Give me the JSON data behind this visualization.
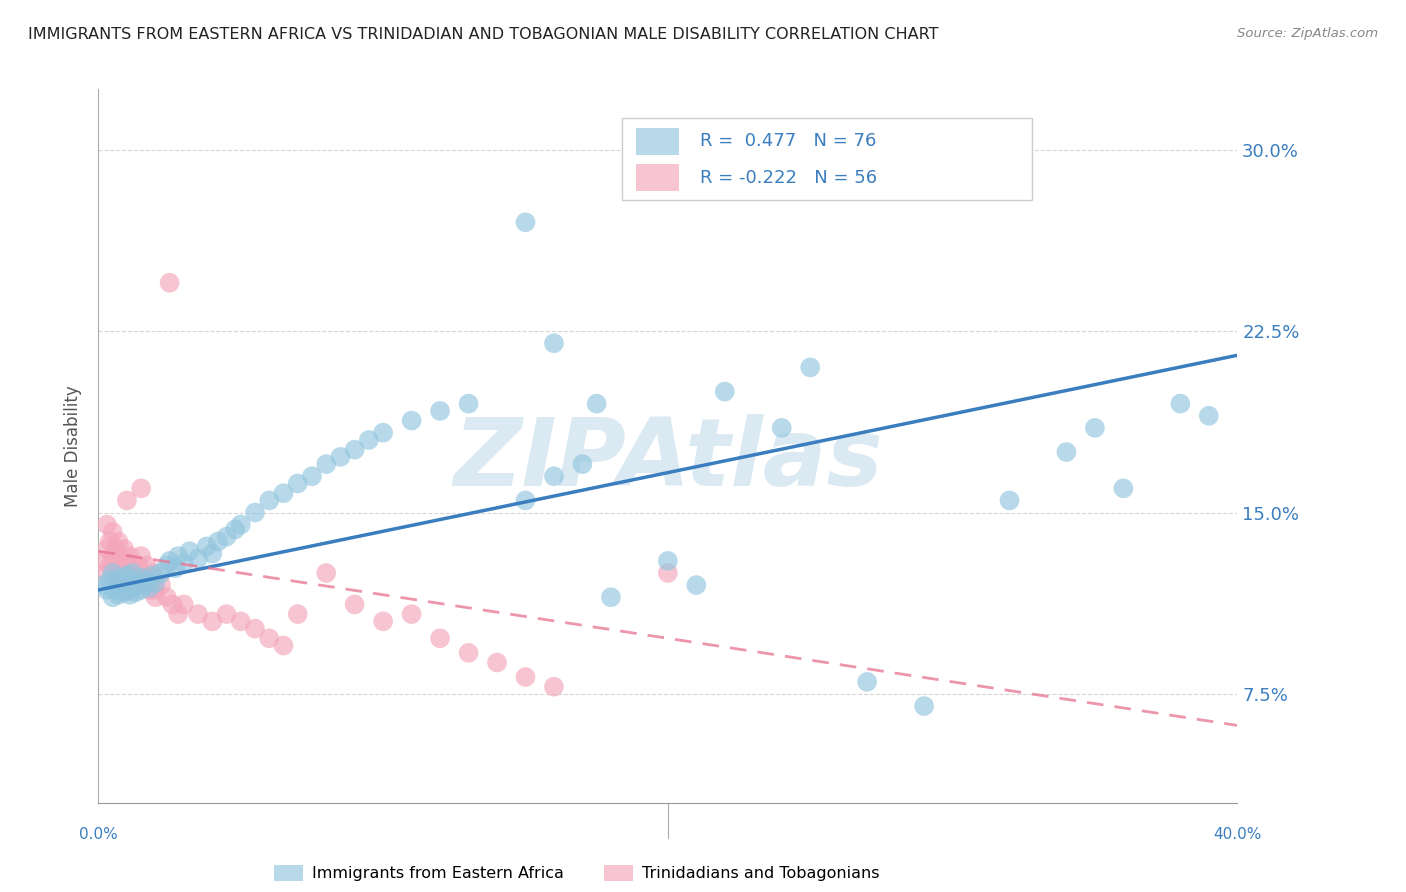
{
  "title": "IMMIGRANTS FROM EASTERN AFRICA VS TRINIDADIAN AND TOBAGONIAN MALE DISABILITY CORRELATION CHART",
  "source": "Source: ZipAtlas.com",
  "ylabel": "Male Disability",
  "yticks": [
    0.075,
    0.15,
    0.225,
    0.3
  ],
  "ytick_labels": [
    "7.5%",
    "15.0%",
    "22.5%",
    "30.0%"
  ],
  "xmin": 0.0,
  "xmax": 0.4,
  "ymin": 0.03,
  "ymax": 0.325,
  "blue_R": 0.477,
  "blue_N": 76,
  "pink_R": -0.222,
  "pink_N": 56,
  "blue_label": "Immigrants from Eastern Africa",
  "pink_label": "Trinidadians and Tobagonians",
  "blue_color": "#92c5de",
  "pink_color": "#f4a6bb",
  "blue_line_color": "#3a7ebf",
  "pink_line_color": "#e8728f",
  "legend_text_color": "#3a7ebf",
  "watermark": "ZIPAtlas",
  "watermark_color": "#b8d4e8",
  "background_color": "#ffffff",
  "grid_color": "#cccccc",
  "title_color": "#222222",
  "blue_scatter_x": [
    0.002,
    0.003,
    0.004,
    0.005,
    0.005,
    0.006,
    0.006,
    0.007,
    0.007,
    0.008,
    0.008,
    0.009,
    0.009,
    0.01,
    0.01,
    0.011,
    0.011,
    0.012,
    0.012,
    0.013,
    0.013,
    0.014,
    0.015,
    0.015,
    0.016,
    0.017,
    0.018,
    0.019,
    0.02,
    0.022,
    0.024,
    0.025,
    0.027,
    0.028,
    0.03,
    0.032,
    0.035,
    0.038,
    0.04,
    0.042,
    0.045,
    0.048,
    0.05,
    0.055,
    0.06,
    0.065,
    0.07,
    0.075,
    0.08,
    0.085,
    0.09,
    0.095,
    0.1,
    0.11,
    0.12,
    0.13,
    0.15,
    0.16,
    0.17,
    0.175,
    0.18,
    0.2,
    0.21,
    0.22,
    0.24,
    0.25,
    0.27,
    0.29,
    0.32,
    0.34,
    0.35,
    0.36,
    0.38,
    0.39,
    0.15,
    0.16
  ],
  "blue_scatter_y": [
    0.12,
    0.118,
    0.122,
    0.115,
    0.125,
    0.118,
    0.122,
    0.116,
    0.12,
    0.119,
    0.123,
    0.117,
    0.121,
    0.118,
    0.124,
    0.116,
    0.122,
    0.119,
    0.125,
    0.117,
    0.121,
    0.12,
    0.118,
    0.123,
    0.12,
    0.122,
    0.119,
    0.124,
    0.121,
    0.125,
    0.128,
    0.13,
    0.127,
    0.132,
    0.129,
    0.134,
    0.131,
    0.136,
    0.133,
    0.138,
    0.14,
    0.143,
    0.145,
    0.15,
    0.155,
    0.158,
    0.162,
    0.165,
    0.17,
    0.173,
    0.176,
    0.18,
    0.183,
    0.188,
    0.192,
    0.195,
    0.155,
    0.165,
    0.17,
    0.195,
    0.115,
    0.13,
    0.12,
    0.2,
    0.185,
    0.21,
    0.08,
    0.07,
    0.155,
    0.175,
    0.185,
    0.16,
    0.195,
    0.19,
    0.27,
    0.22
  ],
  "pink_scatter_x": [
    0.001,
    0.002,
    0.003,
    0.003,
    0.004,
    0.004,
    0.005,
    0.005,
    0.006,
    0.006,
    0.007,
    0.007,
    0.008,
    0.008,
    0.009,
    0.009,
    0.01,
    0.01,
    0.011,
    0.011,
    0.012,
    0.013,
    0.014,
    0.015,
    0.016,
    0.017,
    0.018,
    0.019,
    0.02,
    0.022,
    0.024,
    0.026,
    0.028,
    0.03,
    0.035,
    0.04,
    0.045,
    0.05,
    0.055,
    0.06,
    0.065,
    0.07,
    0.08,
    0.09,
    0.1,
    0.11,
    0.12,
    0.13,
    0.14,
    0.15,
    0.16,
    0.2,
    0.01,
    0.015,
    0.02,
    0.025
  ],
  "pink_scatter_y": [
    0.13,
    0.125,
    0.135,
    0.145,
    0.128,
    0.138,
    0.132,
    0.142,
    0.125,
    0.135,
    0.128,
    0.138,
    0.122,
    0.132,
    0.125,
    0.135,
    0.118,
    0.128,
    0.122,
    0.132,
    0.118,
    0.125,
    0.128,
    0.132,
    0.122,
    0.128,
    0.118,
    0.125,
    0.118,
    0.12,
    0.115,
    0.112,
    0.108,
    0.112,
    0.108,
    0.105,
    0.108,
    0.105,
    0.102,
    0.098,
    0.095,
    0.108,
    0.125,
    0.112,
    0.105,
    0.108,
    0.098,
    0.092,
    0.088,
    0.082,
    0.078,
    0.125,
    0.155,
    0.16,
    0.115,
    0.245
  ]
}
